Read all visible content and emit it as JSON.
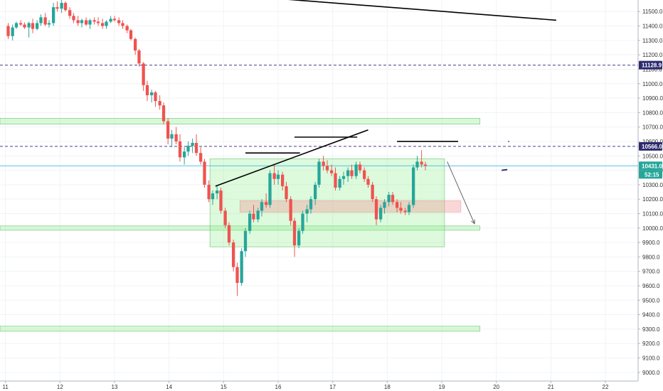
{
  "chart_data": {
    "type": "candlestick",
    "instrument_hint": "price chart",
    "y_axis": {
      "range": [
        8940,
        11580
      ],
      "ticks": [
        9000,
        9100,
        9200,
        9300,
        9400,
        9500,
        9600,
        9700,
        9800,
        9900,
        10000,
        10100,
        10200,
        10300,
        10400,
        10500,
        10600,
        10700,
        10800,
        10900,
        11000,
        11100,
        11200,
        11300,
        11400,
        11500
      ],
      "tick_labels": [
        "9000.0",
        "9100.0",
        "9200.0",
        "9300.0",
        "9400.0",
        "9500.0",
        "9600.0",
        "9700.0",
        "9800.0",
        "9900.0",
        "10000.0",
        "10100.0",
        "10200.0",
        "10300.0",
        "10400.0",
        "10500.0",
        "10600.0",
        "10700.0",
        "10800.0",
        "10900.0",
        "11000.0",
        "11100.0",
        "11200.0",
        "11300.0",
        "11400.0",
        "11500.0"
      ],
      "position": "right"
    },
    "x_axis": {
      "range": [
        10.9,
        22.6
      ],
      "ticks": [
        11,
        12,
        13,
        14,
        15,
        16,
        17,
        18,
        19,
        20,
        21,
        22
      ],
      "tick_labels": [
        "11",
        "12",
        "13",
        "14",
        "15",
        "16",
        "17",
        "18",
        "19",
        "20",
        "21",
        "22"
      ]
    },
    "grid": true,
    "colors": {
      "up": "#26a69a",
      "down": "#ef5350",
      "wick_up": "#26a69a",
      "wick_down": "#ef5350",
      "candle_body_alt": "#2b2b2b"
    },
    "candles": [
      [
        11.05,
        11400,
        11420,
        11310,
        11330
      ],
      [
        11.13,
        11330,
        11410,
        11300,
        11390
      ],
      [
        11.2,
        11390,
        11430,
        11380,
        11420
      ],
      [
        11.28,
        11420,
        11440,
        11400,
        11410
      ],
      [
        11.35,
        11410,
        11425,
        11380,
        11390
      ],
      [
        11.43,
        11390,
        11430,
        11320,
        11420
      ],
      [
        11.5,
        11420,
        11450,
        11350,
        11380
      ],
      [
        11.58,
        11380,
        11440,
        11370,
        11420
      ],
      [
        11.65,
        11420,
        11480,
        11400,
        11460
      ],
      [
        11.73,
        11460,
        11490,
        11400,
        11410
      ],
      [
        11.8,
        11410,
        11440,
        11390,
        11420
      ],
      [
        11.88,
        11420,
        11560,
        11400,
        11530
      ],
      [
        11.95,
        11530,
        11570,
        11500,
        11520
      ],
      [
        12.03,
        11520,
        11580,
        11490,
        11560
      ],
      [
        12.1,
        11560,
        11570,
        11500,
        11510
      ],
      [
        12.18,
        11510,
        11530,
        11450,
        11470
      ],
      [
        12.25,
        11470,
        11490,
        11420,
        11440
      ],
      [
        12.33,
        11440,
        11470,
        11400,
        11420
      ],
      [
        12.4,
        11420,
        11450,
        11390,
        11440
      ],
      [
        12.48,
        11440,
        11460,
        11400,
        11410
      ],
      [
        12.55,
        11410,
        11450,
        11380,
        11440
      ],
      [
        12.63,
        11440,
        11460,
        11410,
        11430
      ],
      [
        12.7,
        11430,
        11460,
        11400,
        11420
      ],
      [
        12.78,
        11420,
        11450,
        11380,
        11400
      ],
      [
        12.85,
        11400,
        11440,
        11380,
        11430
      ],
      [
        12.93,
        11430,
        11470,
        11420,
        11450
      ],
      [
        13.0,
        11450,
        11470,
        11430,
        11440
      ],
      [
        13.08,
        11440,
        11460,
        11400,
        11420
      ],
      [
        13.15,
        11420,
        11440,
        11380,
        11400
      ],
      [
        13.23,
        11400,
        11410,
        11350,
        11370
      ],
      [
        13.3,
        11370,
        11380,
        11300,
        11310
      ],
      [
        13.38,
        11310,
        11320,
        11200,
        11230
      ],
      [
        13.45,
        11230,
        11240,
        11120,
        11140
      ],
      [
        13.53,
        11140,
        11150,
        10950,
        10990
      ],
      [
        13.6,
        10990,
        11020,
        10880,
        10920
      ],
      [
        13.68,
        10920,
        10960,
        10870,
        10940
      ],
      [
        13.75,
        10940,
        10950,
        10840,
        10880
      ],
      [
        13.83,
        10880,
        10920,
        10820,
        10850
      ],
      [
        13.9,
        10850,
        10870,
        10720,
        10740
      ],
      [
        13.98,
        10740,
        10760,
        10580,
        10620
      ],
      [
        14.05,
        10620,
        10680,
        10560,
        10650
      ],
      [
        14.13,
        10650,
        10700,
        10580,
        10600
      ],
      [
        14.2,
        10600,
        10650,
        10460,
        10490
      ],
      [
        14.28,
        10490,
        10560,
        10440,
        10530
      ],
      [
        14.35,
        10530,
        10600,
        10500,
        10570
      ],
      [
        14.43,
        10570,
        10620,
        10520,
        10590
      ],
      [
        14.5,
        10590,
        10650,
        10500,
        10520
      ],
      [
        14.58,
        10520,
        10560,
        10440,
        10460
      ],
      [
        14.65,
        10460,
        10480,
        10280,
        10300
      ],
      [
        14.73,
        10300,
        10330,
        10180,
        10200
      ],
      [
        14.8,
        10200,
        10260,
        10160,
        10240
      ],
      [
        14.88,
        10240,
        10290,
        10200,
        10260
      ],
      [
        14.95,
        10260,
        10280,
        10100,
        10120
      ],
      [
        15.03,
        10120,
        10140,
        10000,
        10020
      ],
      [
        15.1,
        10020,
        10040,
        9880,
        9900
      ],
      [
        15.18,
        9900,
        9920,
        9700,
        9730
      ],
      [
        15.25,
        9730,
        9760,
        9530,
        9620
      ],
      [
        15.33,
        9620,
        9860,
        9600,
        9840
      ],
      [
        15.4,
        9840,
        10000,
        9800,
        9980
      ],
      [
        15.48,
        9980,
        10120,
        9960,
        10100
      ],
      [
        15.55,
        10100,
        10160,
        10040,
        10060
      ],
      [
        15.63,
        10060,
        10140,
        10040,
        10120
      ],
      [
        15.7,
        10120,
        10200,
        10080,
        10180
      ],
      [
        15.78,
        10180,
        10240,
        10140,
        10160
      ],
      [
        15.85,
        10160,
        10400,
        10140,
        10380
      ],
      [
        15.93,
        10380,
        10440,
        10300,
        10340
      ],
      [
        16.0,
        10340,
        10400,
        10300,
        10370
      ],
      [
        16.08,
        10370,
        10390,
        10260,
        10290
      ],
      [
        16.15,
        10290,
        10320,
        10180,
        10200
      ],
      [
        16.23,
        10200,
        10220,
        10020,
        10050
      ],
      [
        16.3,
        10050,
        10070,
        9800,
        9880
      ],
      [
        16.38,
        9880,
        10000,
        9860,
        9980
      ],
      [
        16.45,
        9980,
        10120,
        9960,
        10100
      ],
      [
        16.53,
        10100,
        10160,
        10040,
        10130
      ],
      [
        16.6,
        10130,
        10220,
        10100,
        10200
      ],
      [
        16.68,
        10200,
        10320,
        10160,
        10300
      ],
      [
        16.75,
        10300,
        10480,
        10280,
        10460
      ],
      [
        16.83,
        10460,
        10500,
        10400,
        10430
      ],
      [
        16.9,
        10430,
        10470,
        10380,
        10400
      ],
      [
        16.98,
        10400,
        10440,
        10360,
        10380
      ],
      [
        17.05,
        10380,
        10420,
        10260,
        10280
      ],
      [
        17.13,
        10280,
        10360,
        10260,
        10340
      ],
      [
        17.2,
        10340,
        10390,
        10300,
        10360
      ],
      [
        17.28,
        10360,
        10420,
        10320,
        10400
      ],
      [
        17.35,
        10400,
        10440,
        10340,
        10360
      ],
      [
        17.43,
        10360,
        10460,
        10340,
        10440
      ],
      [
        17.5,
        10440,
        10460,
        10380,
        10400
      ],
      [
        17.58,
        10400,
        10420,
        10320,
        10340
      ],
      [
        17.65,
        10340,
        10360,
        10280,
        10300
      ],
      [
        17.73,
        10300,
        10320,
        10180,
        10200
      ],
      [
        17.8,
        10200,
        10220,
        10020,
        10060
      ],
      [
        17.88,
        10060,
        10160,
        10040,
        10140
      ],
      [
        17.95,
        10140,
        10200,
        10100,
        10180
      ],
      [
        18.03,
        10180,
        10250,
        10150,
        10230
      ],
      [
        18.1,
        10230,
        10250,
        10160,
        10180
      ],
      [
        18.18,
        10180,
        10200,
        10110,
        10140
      ],
      [
        18.25,
        10140,
        10180,
        10100,
        10120
      ],
      [
        18.33,
        10120,
        10140,
        10090,
        10110
      ],
      [
        18.4,
        10110,
        10180,
        10090,
        10160
      ],
      [
        18.48,
        10160,
        10440,
        10140,
        10420
      ],
      [
        18.55,
        10420,
        10500,
        10400,
        10460
      ],
      [
        18.63,
        10460,
        10540,
        10420,
        10440
      ],
      [
        18.7,
        10440,
        10460,
        10400,
        10431
      ]
    ],
    "horizontal_lines": [
      {
        "price": 11128.9,
        "style": "dashed",
        "color": "#4a3b8f",
        "label": "11128.9"
      },
      {
        "price": 10566.0,
        "style": "dashed",
        "color": "#4a3b8f",
        "label": "10566.0"
      },
      {
        "price": 10431.0,
        "style": "solid",
        "color": "#4fc3e8",
        "label": "10431.0"
      }
    ],
    "zones": [
      {
        "x_from": 10.9,
        "x_to": 19.7,
        "y_from": 10720,
        "y_to": 10760,
        "kind": "support-band"
      },
      {
        "x_from": 10.9,
        "x_to": 19.7,
        "y_from": 9985,
        "y_to": 10015,
        "kind": "support-band"
      },
      {
        "x_from": 10.9,
        "x_to": 19.7,
        "y_from": 9285,
        "y_to": 9320,
        "kind": "support-band"
      },
      {
        "x_from": 14.75,
        "x_to": 19.05,
        "y_from": 9870,
        "y_to": 10480,
        "kind": "range-box"
      },
      {
        "x_from": 15.3,
        "x_to": 19.35,
        "y_from": 10110,
        "y_to": 10190,
        "kind": "mid-band"
      }
    ],
    "trendlines": [
      {
        "x1": 12.9,
        "y1": 11680,
        "x2": 21.1,
        "y2": 11440
      },
      {
        "x1": 14.85,
        "y1": 10290,
        "x2": 17.65,
        "y2": 10680
      }
    ],
    "segments": [
      {
        "x1": 15.4,
        "y1": 10520,
        "x2": 16.4,
        "y2": 10520
      },
      {
        "x1": 16.3,
        "y1": 10630,
        "x2": 17.45,
        "y2": 10630
      },
      {
        "x1": 18.18,
        "y1": 10600,
        "x2": 19.3,
        "y2": 10600
      }
    ],
    "projection_arrow": {
      "x1": 19.1,
      "y1": 10460,
      "x2": 19.6,
      "y2": 10030
    },
    "small_marks": [
      {
        "x": 20.15,
        "y": 10400
      },
      {
        "x": 20.15,
        "y": 10600
      }
    ],
    "price_tags": [
      {
        "price": 11128.9,
        "text": "11128.9",
        "color": "#2b2a6e"
      },
      {
        "price": 10566.0,
        "text": "10566.0",
        "color": "#2b2a6e"
      },
      {
        "price": 10431.0,
        "text": "10431.0",
        "color": "#26a69a"
      }
    ],
    "countdown": {
      "text": "52:15",
      "color": "#26a69a"
    }
  }
}
